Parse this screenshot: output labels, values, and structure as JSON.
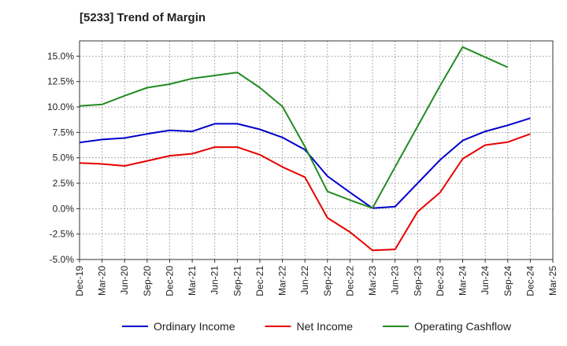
{
  "chart_data": {
    "type": "line",
    "title": "[5233]  Trend of Margin",
    "xlabel": "",
    "ylabel": "",
    "x": [
      "Dec-19",
      "Mar-20",
      "Jun-20",
      "Sep-20",
      "Dec-20",
      "Mar-21",
      "Jun-21",
      "Sep-21",
      "Dec-21",
      "Mar-22",
      "Jun-22",
      "Sep-22",
      "Dec-22",
      "Mar-23",
      "Jun-23",
      "Sep-23",
      "Dec-23",
      "Mar-24",
      "Jun-24",
      "Sep-24",
      "Dec-24",
      "Mar-25"
    ],
    "ylim": [
      -5.0,
      16.5
    ],
    "yticks": [
      "-5.0%",
      "-2.5%",
      "0.0%",
      "2.5%",
      "5.0%",
      "7.5%",
      "10.0%",
      "12.5%",
      "15.0%"
    ],
    "ytick_values": [
      -5.0,
      -2.5,
      0.0,
      2.5,
      5.0,
      7.5,
      10.0,
      12.5,
      15.0
    ],
    "grid": true,
    "legend_position": "bottom",
    "series": [
      {
        "name": "Ordinary Income",
        "color": "#0000cc",
        "values": [
          6.5,
          6.8,
          6.95,
          7.35,
          7.7,
          7.6,
          8.35,
          8.35,
          7.8,
          7.0,
          5.8,
          3.2,
          1.6,
          0.05,
          0.2,
          2.5,
          4.8,
          6.7,
          7.6,
          8.2,
          8.9,
          null
        ]
      },
      {
        "name": "Net Income",
        "color": "#e60000",
        "values": [
          4.5,
          4.4,
          4.2,
          4.7,
          5.2,
          5.4,
          6.05,
          6.05,
          5.3,
          4.1,
          3.1,
          -0.9,
          -2.3,
          -4.1,
          -4.0,
          -0.3,
          1.6,
          4.9,
          6.25,
          6.55,
          7.35,
          null
        ]
      },
      {
        "name": "Operating Cashflow",
        "color": "#228b22",
        "values": [
          10.1,
          10.25,
          11.1,
          11.9,
          12.25,
          12.8,
          13.1,
          13.4,
          11.9,
          10.05,
          6.1,
          1.7,
          0.85,
          0.05,
          4.1,
          8.1,
          12.1,
          15.9,
          14.9,
          13.9,
          null,
          null
        ]
      }
    ]
  }
}
